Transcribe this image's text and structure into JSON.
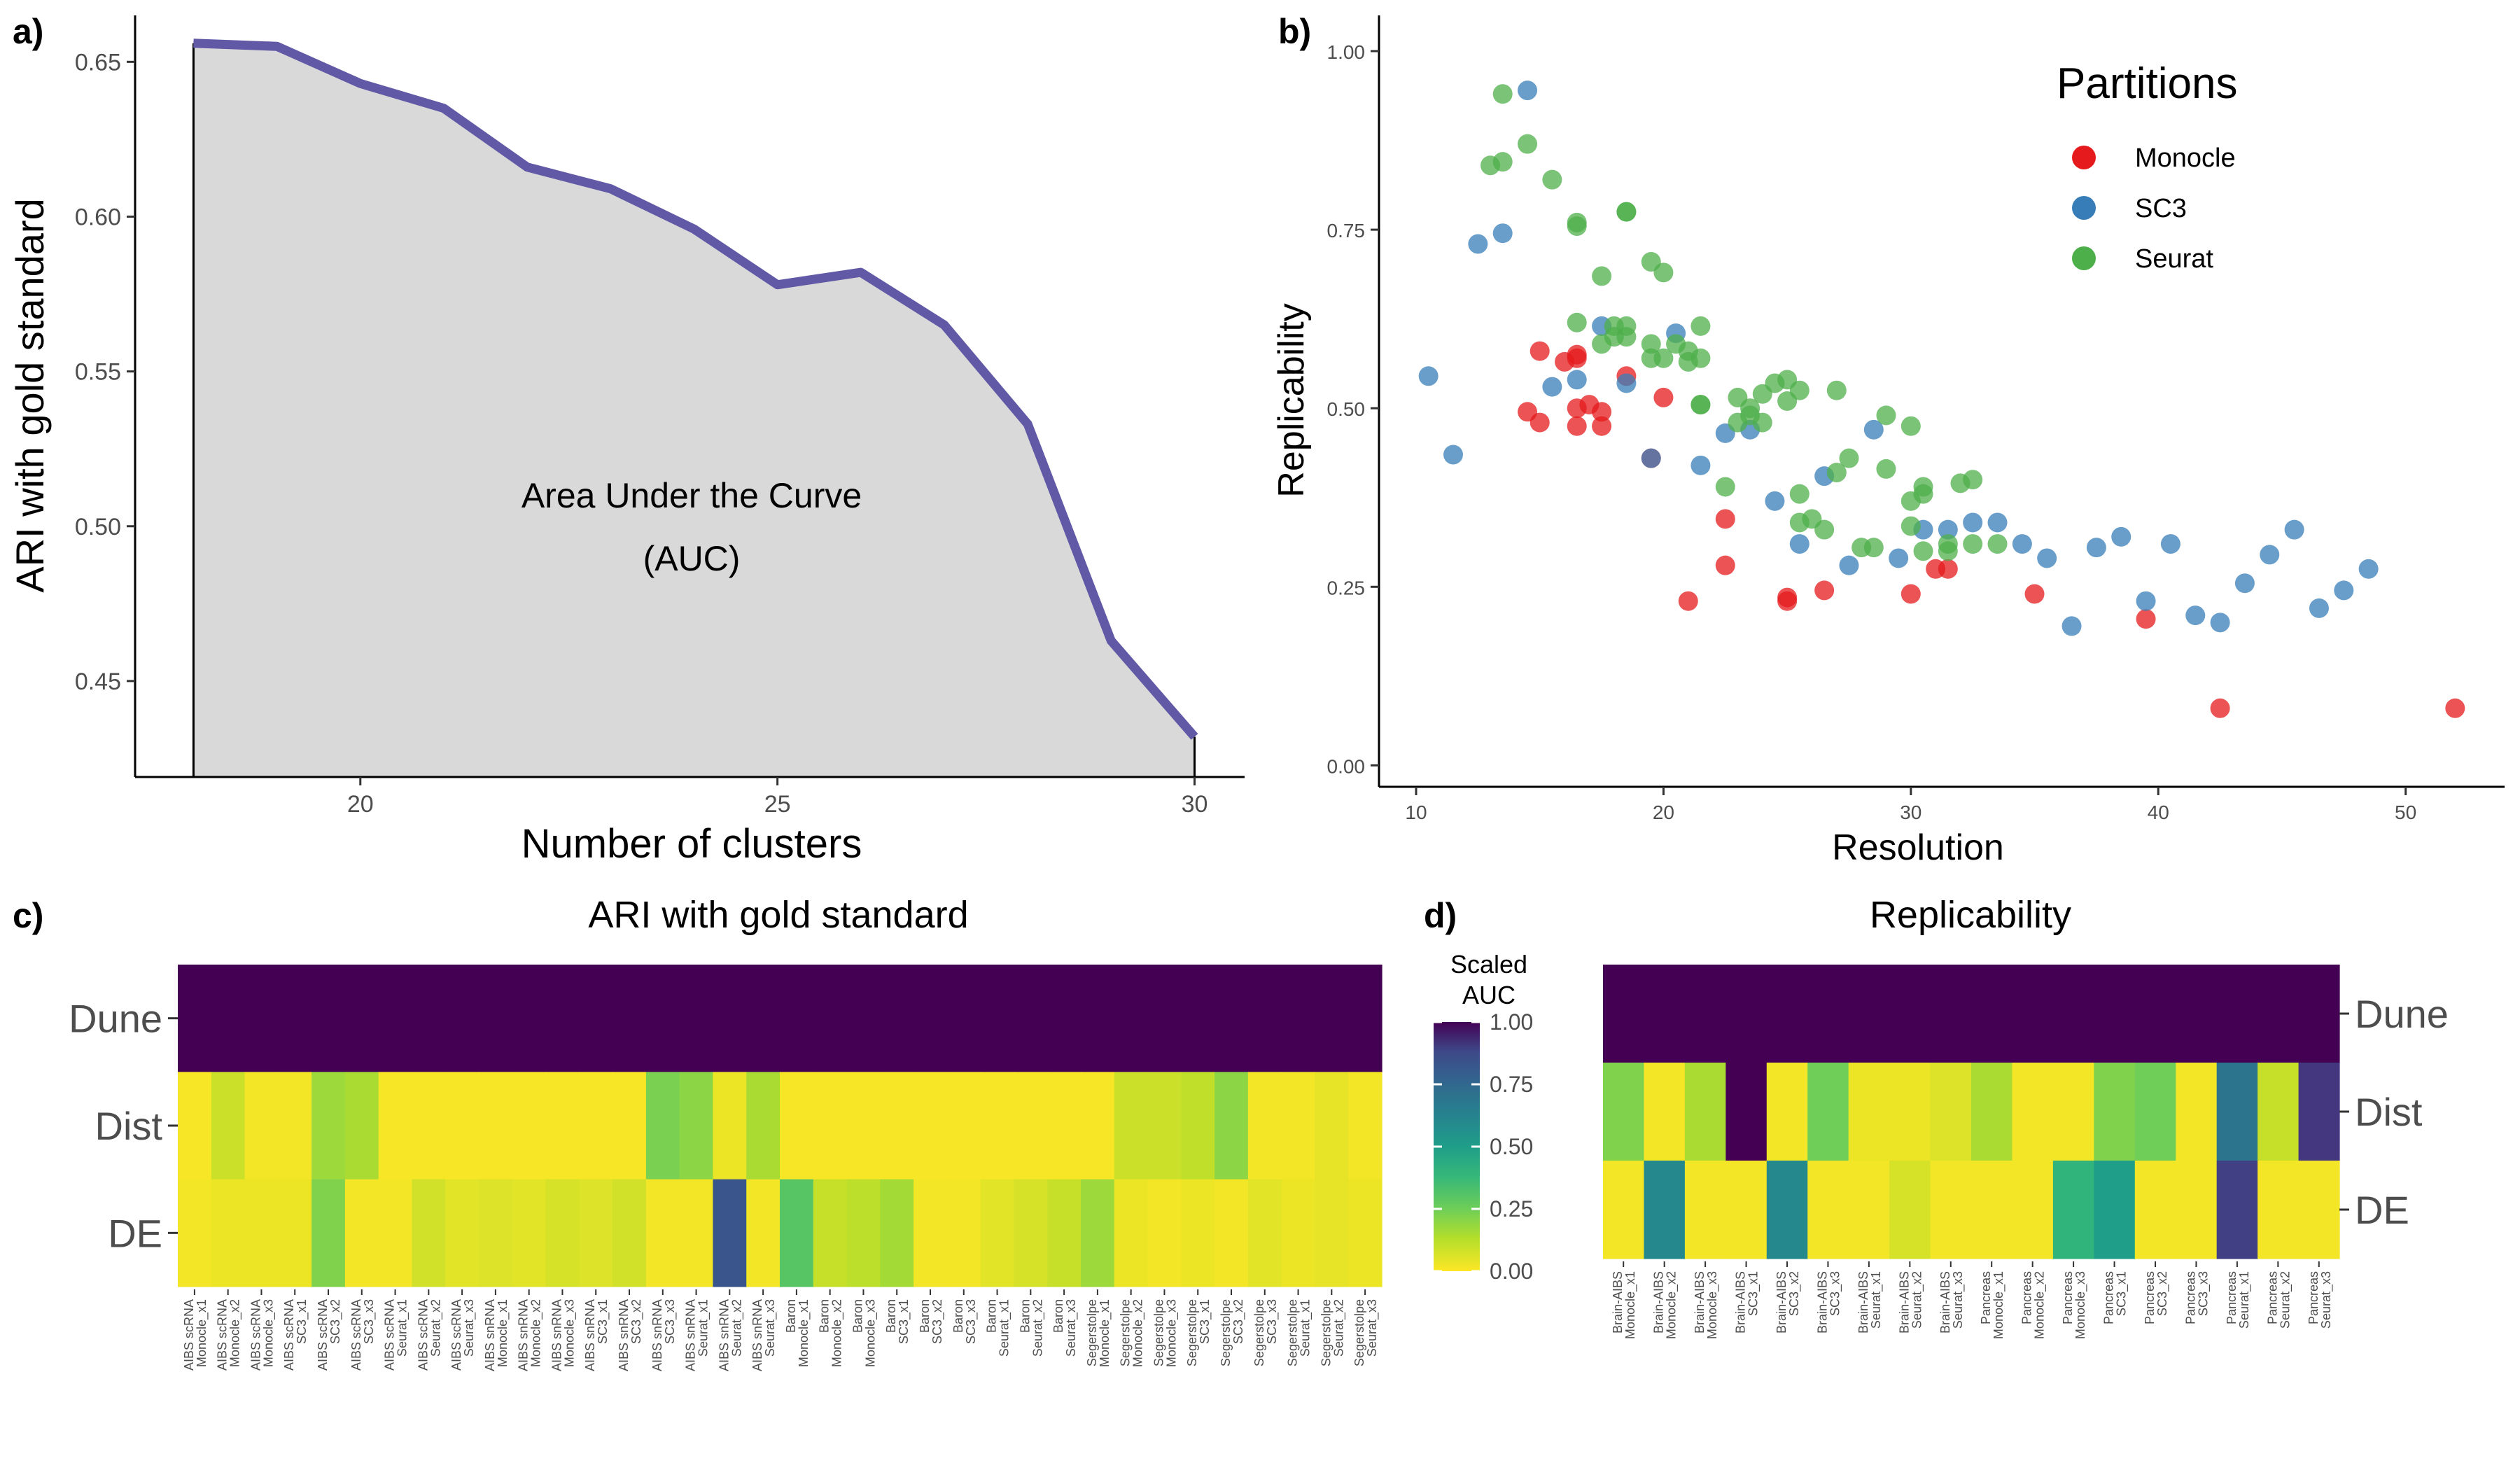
{
  "chart_data": [
    {
      "panel": "a)",
      "type": "area",
      "xlabel": "Number of clusters",
      "ylabel": "ARI with gold standard",
      "xlim": [
        17.3,
        30.6
      ],
      "ylim": [
        0.419,
        0.665
      ],
      "xticks": [
        20,
        25,
        30
      ],
      "yticks": [
        0.45,
        0.5,
        0.55,
        0.6,
        0.65
      ],
      "annotation": [
        "Area Under the Curve",
        "(AUC)"
      ],
      "x": [
        18,
        19,
        20,
        21,
        22,
        23,
        24,
        25,
        26,
        27,
        28,
        29,
        30
      ],
      "y": [
        0.656,
        0.655,
        0.643,
        0.635,
        0.616,
        0.609,
        0.596,
        0.578,
        0.582,
        0.565,
        0.533,
        0.463,
        0.432
      ],
      "line_color": "#6159a6",
      "fill_color": "#d9d9d9"
    },
    {
      "panel": "b)",
      "type": "scatter",
      "xlabel": "Resolution",
      "ylabel": "Replicability",
      "xlim": [
        8.5,
        54
      ],
      "ylim": [
        -0.03,
        1.05
      ],
      "xticks": [
        10,
        20,
        30,
        40,
        50
      ],
      "yticks": [
        0.0,
        0.25,
        0.5,
        0.75,
        1.0
      ],
      "legend": {
        "title": "Partitions",
        "position": "top-right"
      },
      "series": [
        {
          "name": "Monocle",
          "color": "#e41a1c",
          "points": [
            [
              15,
              0.58
            ],
            [
              15,
              0.48
            ],
            [
              14.5,
              0.495
            ],
            [
              16,
              0.565
            ],
            [
              16.5,
              0.575
            ],
            [
              16.5,
              0.57
            ],
            [
              16.5,
              0.475
            ],
            [
              16.5,
              0.5
            ],
            [
              17,
              0.505
            ],
            [
              17.5,
              0.495
            ],
            [
              17.5,
              0.475
            ],
            [
              18.5,
              0.545
            ],
            [
              19.5,
              0.43
            ],
            [
              20,
              0.515
            ],
            [
              21,
              0.23
            ],
            [
              22.5,
              0.345
            ],
            [
              22.5,
              0.28
            ],
            [
              25,
              0.235
            ],
            [
              25,
              0.23
            ],
            [
              26.5,
              0.245
            ],
            [
              30,
              0.24
            ],
            [
              31,
              0.275
            ],
            [
              31.5,
              0.275
            ],
            [
              35,
              0.24
            ],
            [
              39.5,
              0.205
            ],
            [
              42.5,
              0.08
            ],
            [
              52,
              0.08
            ]
          ]
        },
        {
          "name": "SC3",
          "color": "#377eb8",
          "points": [
            [
              10.5,
              0.545
            ],
            [
              11.5,
              0.435
            ],
            [
              12.5,
              0.73
            ],
            [
              13.5,
              0.745
            ],
            [
              14.5,
              0.945
            ],
            [
              15.5,
              0.53
            ],
            [
              16.5,
              0.54
            ],
            [
              17.5,
              0.615
            ],
            [
              18.5,
              0.535
            ],
            [
              19.5,
              0.43
            ],
            [
              20.5,
              0.605
            ],
            [
              21.5,
              0.42
            ],
            [
              22.5,
              0.465
            ],
            [
              23.5,
              0.47
            ],
            [
              24.5,
              0.37
            ],
            [
              25.5,
              0.31
            ],
            [
              26.5,
              0.405
            ],
            [
              27.5,
              0.28
            ],
            [
              28.5,
              0.47
            ],
            [
              29.5,
              0.29
            ],
            [
              30.5,
              0.33
            ],
            [
              31.5,
              0.33
            ],
            [
              32.5,
              0.34
            ],
            [
              33.5,
              0.34
            ],
            [
              34.5,
              0.31
            ],
            [
              35.5,
              0.29
            ],
            [
              36.5,
              0.195
            ],
            [
              37.5,
              0.305
            ],
            [
              38.5,
              0.32
            ],
            [
              39.5,
              0.23
            ],
            [
              40.5,
              0.31
            ],
            [
              41.5,
              0.21
            ],
            [
              42.5,
              0.2
            ],
            [
              43.5,
              0.255
            ],
            [
              44.5,
              0.295
            ],
            [
              45.5,
              0.33
            ],
            [
              46.5,
              0.22
            ],
            [
              47.5,
              0.245
            ],
            [
              48.5,
              0.275
            ]
          ]
        },
        {
          "name": "Seurat",
          "color": "#4daf4a",
          "points": [
            [
              13,
              0.84
            ],
            [
              13.5,
              0.845
            ],
            [
              13.5,
              0.94
            ],
            [
              14.5,
              0.87
            ],
            [
              15.5,
              0.82
            ],
            [
              16.5,
              0.76
            ],
            [
              16.5,
              0.755
            ],
            [
              16.5,
              0.62
            ],
            [
              17.5,
              0.685
            ],
            [
              17.5,
              0.59
            ],
            [
              18,
              0.6
            ],
            [
              18,
              0.615
            ],
            [
              18.5,
              0.775
            ],
            [
              18.5,
              0.775
            ],
            [
              18.5,
              0.615
            ],
            [
              18.5,
              0.6
            ],
            [
              19.5,
              0.705
            ],
            [
              19.5,
              0.59
            ],
            [
              19.5,
              0.57
            ],
            [
              20,
              0.69
            ],
            [
              20,
              0.57
            ],
            [
              20.5,
              0.59
            ],
            [
              21,
              0.58
            ],
            [
              21,
              0.565
            ],
            [
              21.5,
              0.615
            ],
            [
              21.5,
              0.57
            ],
            [
              21.5,
              0.505
            ],
            [
              21.5,
              0.505
            ],
            [
              22.5,
              0.39
            ],
            [
              23,
              0.515
            ],
            [
              23,
              0.48
            ],
            [
              23.5,
              0.5
            ],
            [
              23.5,
              0.49
            ],
            [
              24,
              0.52
            ],
            [
              24,
              0.48
            ],
            [
              24.5,
              0.535
            ],
            [
              25,
              0.54
            ],
            [
              25,
              0.51
            ],
            [
              25.5,
              0.525
            ],
            [
              25.5,
              0.38
            ],
            [
              25.5,
              0.34
            ],
            [
              26,
              0.345
            ],
            [
              26.5,
              0.33
            ],
            [
              27,
              0.525
            ],
            [
              27,
              0.41
            ],
            [
              27.5,
              0.43
            ],
            [
              28,
              0.305
            ],
            [
              28.5,
              0.305
            ],
            [
              29,
              0.49
            ],
            [
              29,
              0.415
            ],
            [
              30,
              0.475
            ],
            [
              30,
              0.37
            ],
            [
              30,
              0.335
            ],
            [
              30.5,
              0.39
            ],
            [
              30.5,
              0.38
            ],
            [
              30.5,
              0.3
            ],
            [
              31.5,
              0.31
            ],
            [
              31.5,
              0.3
            ],
            [
              32,
              0.395
            ],
            [
              32.5,
              0.4
            ],
            [
              32.5,
              0.31
            ],
            [
              33.5,
              0.31
            ]
          ]
        }
      ]
    },
    {
      "panel": "c)",
      "type": "heatmap",
      "title": "ARI with gold standard",
      "rows": [
        "Dune",
        "Dist",
        "DE"
      ],
      "columns": [
        "AIBS scRNA",
        "Monocle_x1",
        "AIBS scRNA",
        "Monocle_x2",
        "AIBS scRNA",
        "Monocle_x3",
        "AIBS scRNA",
        "SC3_x1",
        "AIBS scRNA",
        "SC3_x2",
        "AIBS scRNA",
        "SC3_x3",
        "AIBS scRNA",
        "Seurat_x1",
        "AIBS scRNA",
        "Seurat_x2",
        "AIBS scRNA",
        "Seurat_x3",
        "AIBS snRNA",
        "Monocle_x1",
        "AIBS snRNA",
        "Monocle_x2",
        "AIBS snRNA",
        "Monocle_x3",
        "AIBS snRNA",
        "SC3_x1",
        "AIBS snRNA",
        "SC3_x2",
        "AIBS snRNA",
        "SC3_x3",
        "AIBS snRNA",
        "Seurat_x1",
        "AIBS snRNA",
        "Seurat_x2",
        "AIBS snRNA",
        "Seurat_x3",
        "Baron",
        "Monocle_x1",
        "Baron",
        "Monocle_x2",
        "Baron",
        "Monocle_x3",
        "Baron",
        "SC3_x1",
        "Baron",
        "SC3_x2",
        "Baron",
        "SC3_x3",
        "Baron",
        "Seurat_x1",
        "Baron",
        "Seurat_x2",
        "Baron",
        "Seurat_x3",
        "Segerstolpe",
        "Monocle_x1",
        "Segerstolpe",
        "Monocle_x2",
        "Segerstolpe",
        "Monocle_x3",
        "Segerstolpe",
        "SC3_x1",
        "Segerstolpe",
        "SC3_x2",
        "Segerstolpe",
        "SC3_x3",
        "Segerstolpe",
        "Seurat_x1",
        "Segerstolpe",
        "Seurat_x2",
        "Segerstolpe",
        "Seurat_x3"
      ],
      "values": [
        [
          1,
          1,
          1,
          1,
          1,
          1,
          1,
          1,
          1,
          1,
          1,
          1,
          1,
          1,
          1,
          1,
          1,
          1,
          1,
          1,
          1,
          1,
          1,
          1,
          1,
          1,
          1,
          1,
          1,
          1,
          1,
          1,
          1,
          1,
          1,
          1
        ],
        [
          0.01,
          0.09,
          0.02,
          0.02,
          0.17,
          0.15,
          0.01,
          0.01,
          0.01,
          0.01,
          0.01,
          0.01,
          0.01,
          0.01,
          0.23,
          0.2,
          0.03,
          0.15,
          0.01,
          0.01,
          0.01,
          0.01,
          0.01,
          0.01,
          0.01,
          0.01,
          0.01,
          0.01,
          0.09,
          0.09,
          0.11,
          0.2,
          0.02,
          0.02,
          0.04,
          0.02
        ],
        [
          0.02,
          0.03,
          0.03,
          0.03,
          0.22,
          0.02,
          0.02,
          0.08,
          0.05,
          0.06,
          0.05,
          0.07,
          0.06,
          0.08,
          0.02,
          0.02,
          0.83,
          0.02,
          0.3,
          0.1,
          0.12,
          0.16,
          0.02,
          0.02,
          0.05,
          0.07,
          0.1,
          0.17,
          0.03,
          0.02,
          0.03,
          0.02,
          0.05,
          0.03,
          0.04,
          0.03
        ]
      ]
    },
    {
      "panel": "d)",
      "type": "heatmap",
      "title": "Replicability",
      "rows": [
        "Dune",
        "Dist",
        "DE"
      ],
      "columns": [
        "Brain-AIBS",
        "Monocle_x1",
        "Brain-AIBS",
        "Monocle_x2",
        "Brain-AIBS",
        "Monocle_x3",
        "Brain-AIBS",
        "SC3_x1",
        "Brain-AIBS",
        "SC3_x2",
        "Brain-AIBS",
        "SC3_x3",
        "Brain-AIBS",
        "Seurat_x1",
        "Brain-AIBS",
        "Seurat_x2",
        "Brain-AIBS",
        "Seurat_x3",
        "Pancreas",
        "Monocle_x1",
        "Pancreas",
        "Monocle_x2",
        "Pancreas",
        "Monocle_x3",
        "Pancreas",
        "SC3_x1",
        "Pancreas",
        "SC3_x2",
        "Pancreas",
        "SC3_x3",
        "Pancreas",
        "Seurat_x1",
        "Pancreas",
        "Seurat_x2",
        "Pancreas",
        "Seurat_x3"
      ],
      "values": [
        [
          1,
          1,
          1,
          1,
          1,
          1,
          1,
          1,
          1,
          1,
          1,
          1,
          1,
          1,
          1,
          1,
          1,
          1
        ],
        [
          0.22,
          0.02,
          0.15,
          1.0,
          0.02,
          0.25,
          0.03,
          0.03,
          0.06,
          0.15,
          0.02,
          0.02,
          0.22,
          0.25,
          0.02,
          0.7,
          0.1,
          0.92
        ],
        [
          0.02,
          0.6,
          0.02,
          0.02,
          0.6,
          0.02,
          0.02,
          0.07,
          0.02,
          0.02,
          0.02,
          0.4,
          0.5,
          0.02,
          0.02,
          0.9,
          0.02,
          0.02
        ]
      ]
    }
  ],
  "colorbar": {
    "title": [
      "Scaled",
      "AUC"
    ],
    "ticks": [
      "1.00",
      "0.75",
      "0.50",
      "0.25",
      "0.00"
    ]
  }
}
